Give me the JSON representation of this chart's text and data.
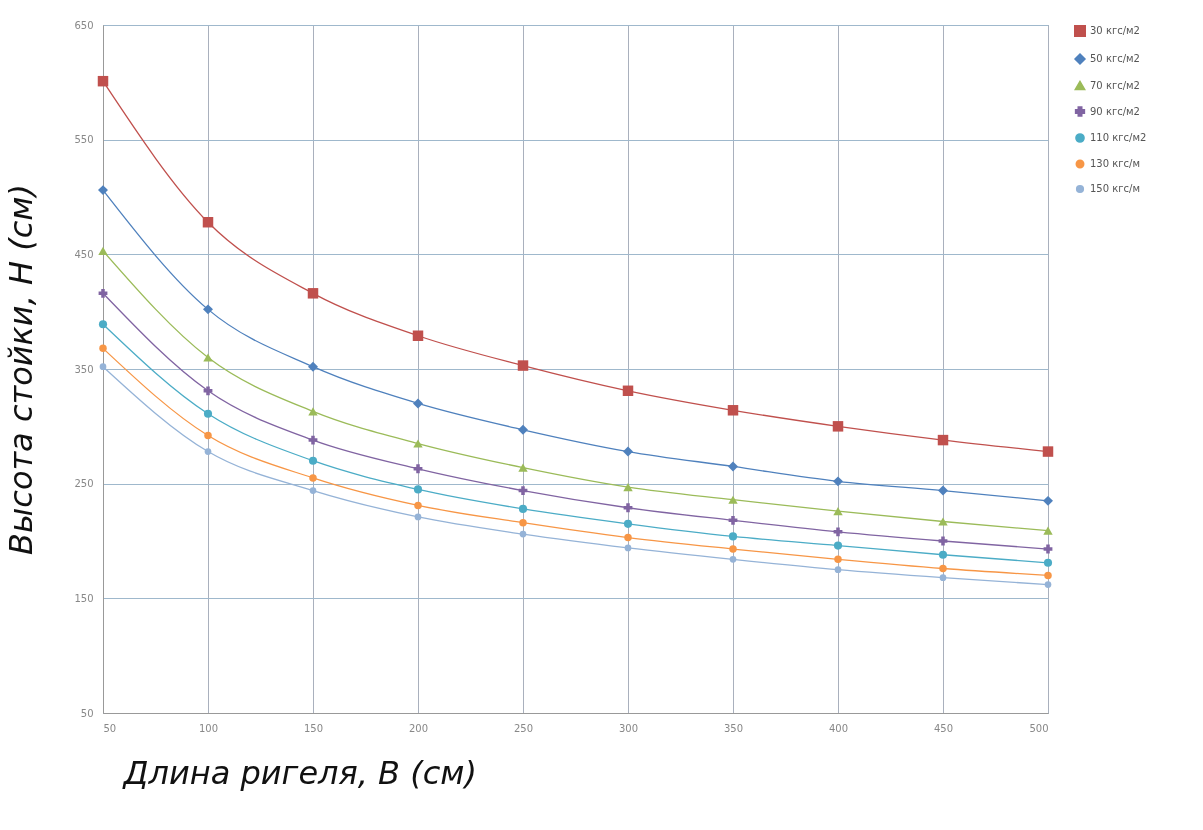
{
  "chart_data": {
    "type": "line",
    "xlabel": "Длина ригеля, B (см)",
    "ylabel": "Высота стойки, H (см)",
    "x": [
      50,
      100,
      150,
      200,
      250,
      300,
      350,
      400,
      450,
      500
    ],
    "xlim": [
      50,
      500
    ],
    "xticks": [
      50,
      100,
      150,
      200,
      250,
      300,
      350,
      400,
      450,
      500
    ],
    "ylim": [
      50,
      650
    ],
    "yticks": [
      50,
      150,
      250,
      350,
      450,
      550,
      650
    ],
    "grid": true,
    "legend": "right",
    "line_style": "solid",
    "series": [
      {
        "name": "30 кгс/м2",
        "color": "#c0504d",
        "marker": "square",
        "values": [
          601,
          478,
          416,
          379,
          353,
          331,
          314,
          300,
          288,
          278
        ]
      },
      {
        "name": "50 кгс/м2",
        "color": "#4f81bd",
        "marker": "diamond",
        "values": [
          506,
          402,
          352,
          320,
          297,
          278,
          265,
          252,
          244,
          235
        ]
      },
      {
        "name": "70 кгс/м2",
        "color": "#9bbb59",
        "marker": "triangle",
        "values": [
          453,
          360,
          313,
          285,
          264,
          247,
          236,
          226,
          217,
          209
        ]
      },
      {
        "name": "90 кгс/м2",
        "color": "#8064a2",
        "marker": "cross",
        "values": [
          416,
          331,
          288,
          263,
          244,
          229,
          218,
          208,
          200,
          193
        ]
      },
      {
        "name": "110 кгс/м2",
        "color": "#4bacc6",
        "marker": "circle",
        "values": [
          389,
          311,
          270,
          245,
          228,
          215,
          204,
          196,
          188,
          181
        ]
      },
      {
        "name": "130 кгс/м",
        "color": "#f79646",
        "marker": "circle",
        "values": [
          368,
          292,
          255,
          231,
          216,
          203,
          193,
          184,
          176,
          170
        ]
      },
      {
        "name": "150 кгс/м",
        "color": "#95b3d7",
        "marker": "circle",
        "values": [
          352,
          278,
          244,
          221,
          206,
          194,
          184,
          175,
          168,
          162
        ]
      }
    ]
  }
}
